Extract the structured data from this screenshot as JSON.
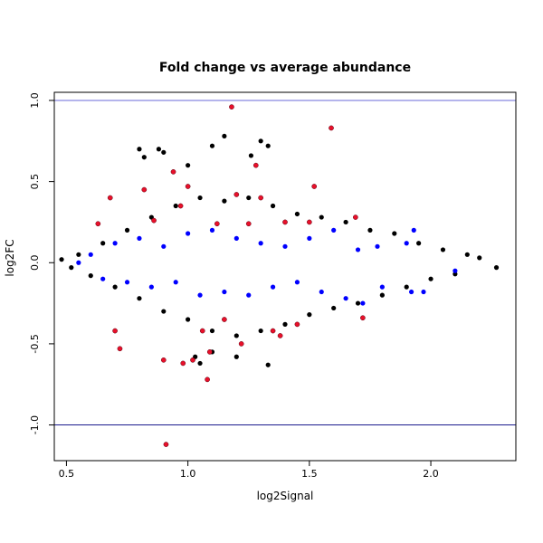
{
  "chart_data": {
    "type": "scatter",
    "title": "Fold change vs average abundance",
    "xlabel": "log2Signal",
    "ylabel": "log2FC",
    "xlim": [
      0.45,
      2.35
    ],
    "ylim": [
      -1.22,
      1.05
    ],
    "x_ticks": [
      0.5,
      1.0,
      1.5,
      2.0
    ],
    "x_tick_labels": [
      "0.5",
      "1.0",
      "1.5",
      "2.0"
    ],
    "y_ticks": [
      -1.0,
      -0.5,
      0.0,
      0.5,
      1.0
    ],
    "y_tick_labels": [
      "-1.0",
      "-0.5",
      "0.0",
      "0.5",
      "1.0"
    ],
    "grid": false,
    "reference_lines": [
      {
        "axis": "y",
        "value": 1.0,
        "color": "#6a6ad8"
      },
      {
        "axis": "y",
        "value": -1.0,
        "color": "#1a1a8c"
      }
    ],
    "colors": {
      "background": "#000000",
      "highlight": "#0000ff",
      "significant": "#e8102a"
    },
    "series": [
      {
        "color": "#000000",
        "points": [
          [
            0.48,
            0.02
          ],
          [
            0.52,
            -0.03
          ],
          [
            0.55,
            0.05
          ],
          [
            0.6,
            -0.08
          ],
          [
            0.65,
            0.12
          ],
          [
            0.7,
            -0.15
          ],
          [
            0.75,
            0.2
          ],
          [
            0.8,
            -0.22
          ],
          [
            0.85,
            0.28
          ],
          [
            0.9,
            -0.3
          ],
          [
            0.95,
            0.35
          ],
          [
            1.0,
            -0.35
          ],
          [
            1.05,
            0.4
          ],
          [
            1.1,
            -0.42
          ],
          [
            1.15,
            0.38
          ],
          [
            1.2,
            -0.45
          ],
          [
            1.25,
            0.4
          ],
          [
            1.3,
            -0.42
          ],
          [
            1.35,
            0.35
          ],
          [
            1.4,
            -0.38
          ],
          [
            1.45,
            0.3
          ],
          [
            1.5,
            -0.32
          ],
          [
            1.55,
            0.28
          ],
          [
            1.6,
            -0.28
          ],
          [
            1.65,
            0.25
          ],
          [
            1.7,
            -0.25
          ],
          [
            1.75,
            0.2
          ],
          [
            1.8,
            -0.2
          ],
          [
            1.85,
            0.18
          ],
          [
            1.9,
            -0.15
          ],
          [
            1.95,
            0.12
          ],
          [
            2.0,
            -0.1
          ],
          [
            2.05,
            0.08
          ],
          [
            2.1,
            -0.07
          ],
          [
            2.15,
            0.05
          ],
          [
            2.2,
            0.03
          ],
          [
            2.27,
            -0.03
          ],
          [
            0.8,
            0.7
          ],
          [
            0.82,
            0.65
          ],
          [
            0.88,
            0.7
          ],
          [
            0.9,
            0.68
          ],
          [
            1.0,
            0.6
          ],
          [
            1.1,
            0.72
          ],
          [
            1.15,
            0.78
          ],
          [
            1.26,
            0.66
          ],
          [
            1.3,
            0.75
          ],
          [
            1.33,
            0.72
          ],
          [
            1.03,
            -0.58
          ],
          [
            1.05,
            -0.62
          ],
          [
            1.1,
            -0.55
          ],
          [
            1.2,
            -0.58
          ],
          [
            1.33,
            -0.63
          ]
        ]
      },
      {
        "color": "#0000ff",
        "points": [
          [
            0.55,
            0.0
          ],
          [
            0.6,
            0.05
          ],
          [
            0.65,
            -0.1
          ],
          [
            0.7,
            0.12
          ],
          [
            0.75,
            -0.12
          ],
          [
            0.8,
            0.15
          ],
          [
            0.85,
            -0.15
          ],
          [
            0.9,
            0.1
          ],
          [
            0.95,
            -0.12
          ],
          [
            1.0,
            0.18
          ],
          [
            1.05,
            -0.2
          ],
          [
            1.1,
            0.2
          ],
          [
            1.15,
            -0.18
          ],
          [
            1.2,
            0.15
          ],
          [
            1.25,
            -0.2
          ],
          [
            1.3,
            0.12
          ],
          [
            1.35,
            -0.15
          ],
          [
            1.4,
            0.1
          ],
          [
            1.45,
            -0.12
          ],
          [
            1.5,
            0.15
          ],
          [
            1.55,
            -0.18
          ],
          [
            1.6,
            0.2
          ],
          [
            1.65,
            -0.22
          ],
          [
            1.7,
            0.08
          ],
          [
            1.72,
            -0.25
          ],
          [
            1.78,
            0.1
          ],
          [
            1.8,
            -0.15
          ],
          [
            1.9,
            0.12
          ],
          [
            1.92,
            -0.18
          ],
          [
            1.97,
            -0.18
          ],
          [
            2.1,
            -0.05
          ],
          [
            1.93,
            0.2
          ]
        ]
      },
      {
        "color": "#e8102a",
        "points": [
          [
            0.63,
            0.24
          ],
          [
            0.68,
            0.4
          ],
          [
            0.7,
            -0.42
          ],
          [
            0.72,
            -0.53
          ],
          [
            0.82,
            0.45
          ],
          [
            0.86,
            0.26
          ],
          [
            0.9,
            -0.6
          ],
          [
            0.91,
            -1.12
          ],
          [
            0.94,
            0.56
          ],
          [
            0.97,
            0.35
          ],
          [
            0.98,
            -0.62
          ],
          [
            1.0,
            0.47
          ],
          [
            1.02,
            -0.6
          ],
          [
            1.06,
            -0.42
          ],
          [
            1.08,
            -0.72
          ],
          [
            1.09,
            -0.55
          ],
          [
            1.12,
            0.24
          ],
          [
            1.15,
            -0.35
          ],
          [
            1.18,
            0.96
          ],
          [
            1.2,
            0.42
          ],
          [
            1.22,
            -0.5
          ],
          [
            1.25,
            0.24
          ],
          [
            1.28,
            0.6
          ],
          [
            1.3,
            0.4
          ],
          [
            1.35,
            -0.42
          ],
          [
            1.38,
            -0.45
          ],
          [
            1.4,
            0.25
          ],
          [
            1.45,
            -0.38
          ],
          [
            1.5,
            0.25
          ],
          [
            1.52,
            0.47
          ],
          [
            1.59,
            0.83
          ],
          [
            1.69,
            0.28
          ],
          [
            1.72,
            -0.34
          ]
        ]
      }
    ]
  }
}
